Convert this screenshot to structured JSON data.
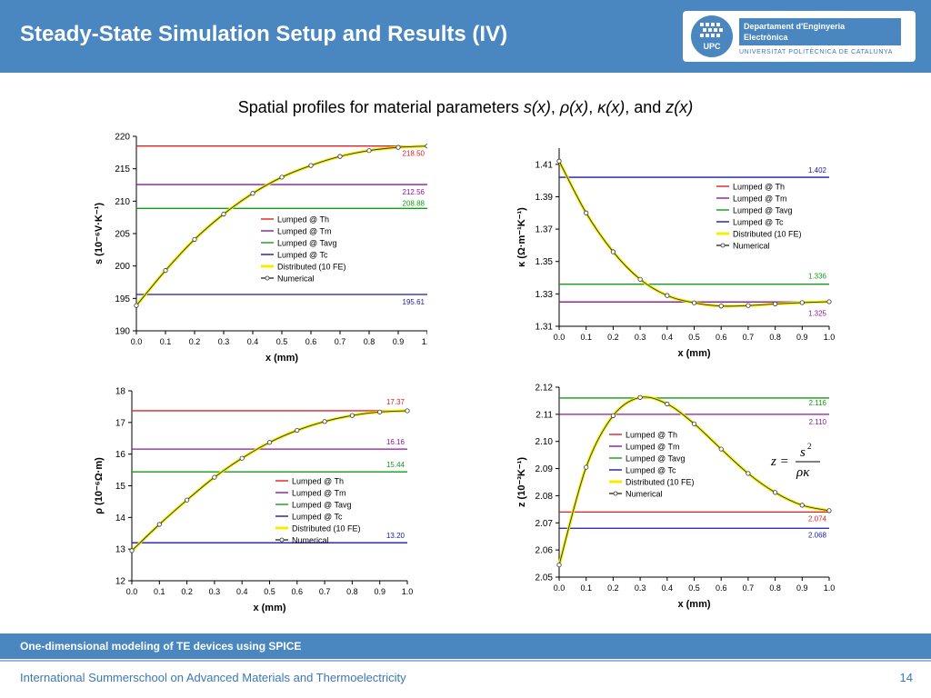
{
  "slide": {
    "title": "Steady-State Simulation Setup and Results (IV)",
    "subtitle_prefix": "Spatial profiles for material parameters ",
    "subtitle_params": [
      "s(x)",
      "ρ(x)",
      "κ(x)",
      "z(x)"
    ],
    "subtitle_and": "and",
    "footer_course": "One-dimensional modeling of TE devices using SPICE",
    "footer_event": "International Summerschool on Advanced Materials and Thermoelectricity",
    "page_number": "14"
  },
  "logo": {
    "seal_text": "UPC",
    "department_line1": "Departament d'Enginyeria",
    "department_line2": "Electrònica",
    "university": "UNIVERSITAT POLITÈCNICA DE CATALUNYA"
  },
  "colors": {
    "header_blue": "#4a86c0",
    "Th": "#e02020",
    "Tm": "#8a1a9a",
    "Tavg": "#159a15",
    "Tc": "#1a1aa8",
    "distributed": "#f2ef00",
    "numerical": "#333333"
  },
  "chart_data": [
    {
      "id": "s",
      "type": "line",
      "xlabel": "x (mm)",
      "ylabel": "s (10⁻⁶V·K⁻¹)",
      "xlim": [
        0,
        1
      ],
      "ylim": [
        190,
        220
      ],
      "xticks": [
        "0.0",
        "0.1",
        "0.2",
        "0.3",
        "0.4",
        "0.5",
        "0.6",
        "0.7",
        "0.8",
        "0.9",
        "1.0"
      ],
      "yticks": [
        "190",
        "195",
        "200",
        "205",
        "210",
        "215",
        "220"
      ],
      "legend_position": "center",
      "lumped": [
        {
          "name": "Lumped @ Th",
          "value": 218.5,
          "label": "218.50"
        },
        {
          "name": "Lumped @ Tm",
          "value": 212.56,
          "label": "212.56"
        },
        {
          "name": "Lumped @ Tavg",
          "value": 208.88,
          "label": "208.88"
        },
        {
          "name": "Lumped @ Tc",
          "value": 195.61,
          "label": "195.61"
        }
      ],
      "distributed_name": "Distributed (10 FE)",
      "numerical_name": "Numerical",
      "x": [
        0.0,
        0.1,
        0.2,
        0.3,
        0.4,
        0.5,
        0.6,
        0.7,
        0.8,
        0.9,
        1.0
      ],
      "values": [
        193.9,
        199.3,
        204.1,
        208.0,
        211.2,
        213.7,
        215.5,
        216.9,
        217.8,
        218.3,
        218.5
      ]
    },
    {
      "id": "kappa",
      "type": "line",
      "xlabel": "x (mm)",
      "ylabel": "κ (Ω·m⁻¹K⁻¹)",
      "xlim": [
        0,
        1
      ],
      "ylim": [
        1.31,
        1.42
      ],
      "xticks": [
        "0.0",
        "0.1",
        "0.2",
        "0.3",
        "0.4",
        "0.5",
        "0.6",
        "0.7",
        "0.8",
        "0.9",
        "1.0"
      ],
      "yticks": [
        "1.31",
        "1.33",
        "1.35",
        "1.37",
        "1.39",
        "1.41"
      ],
      "legend_position": "top-right",
      "lumped": [
        {
          "name": "Lumped @ Th",
          "value": 1.325,
          "label": ""
        },
        {
          "name": "Lumped @ Tm",
          "value": 1.325,
          "label": "1.325"
        },
        {
          "name": "Lumped @ Tavg",
          "value": 1.336,
          "label": "1.336"
        },
        {
          "name": "Lumped @ Tc",
          "value": 1.402,
          "label": "1.402"
        }
      ],
      "distributed_name": "Distributed (10 FE)",
      "numerical_name": "Numerical",
      "x": [
        0.0,
        0.1,
        0.2,
        0.3,
        0.4,
        0.5,
        0.6,
        0.7,
        0.8,
        0.9,
        1.0
      ],
      "values": [
        1.412,
        1.38,
        1.356,
        1.339,
        1.329,
        1.3245,
        1.3225,
        1.3228,
        1.3238,
        1.3246,
        1.3252
      ]
    },
    {
      "id": "rho",
      "type": "line",
      "xlabel": "x (mm)",
      "ylabel": "ρ (10⁻⁶Ω·m)",
      "xlim": [
        0,
        1
      ],
      "ylim": [
        12,
        18
      ],
      "xticks": [
        "0.0",
        "0.1",
        "0.2",
        "0.3",
        "0.4",
        "0.5",
        "0.6",
        "0.7",
        "0.8",
        "0.9",
        "1.0"
      ],
      "yticks": [
        "12",
        "13",
        "14",
        "15",
        "16",
        "17",
        "18"
      ],
      "legend_position": "bottom-right",
      "lumped": [
        {
          "name": "Lumped @ Th",
          "value": 17.37,
          "label": "17.37"
        },
        {
          "name": "Lumped @ Tm",
          "value": 16.16,
          "label": "16.16"
        },
        {
          "name": "Lumped @ Tavg",
          "value": 15.44,
          "label": "15.44"
        },
        {
          "name": "Lumped @ Tc",
          "value": 13.2,
          "label": "13.20"
        }
      ],
      "distributed_name": "Distributed (10 FE)",
      "numerical_name": "Numerical",
      "x": [
        0.0,
        0.1,
        0.2,
        0.3,
        0.4,
        0.5,
        0.6,
        0.7,
        0.8,
        0.9,
        1.0
      ],
      "values": [
        12.95,
        13.78,
        14.55,
        15.27,
        15.87,
        16.37,
        16.75,
        17.03,
        17.22,
        17.33,
        17.37
      ]
    },
    {
      "id": "z",
      "type": "line",
      "xlabel": "x (mm)",
      "ylabel": "z (10⁻³K⁻¹)",
      "xlim": [
        0,
        1
      ],
      "ylim": [
        2.05,
        2.12
      ],
      "xticks": [
        "0.0",
        "0.1",
        "0.2",
        "0.3",
        "0.4",
        "0.5",
        "0.6",
        "0.7",
        "0.8",
        "0.9",
        "1.0"
      ],
      "yticks": [
        "2.05",
        "2.06",
        "2.07",
        "2.08",
        "2.09",
        "2.10",
        "2.11",
        "2.12"
      ],
      "legend_position": "center",
      "lumped": [
        {
          "name": "Lumped @ Th",
          "value": 2.074,
          "label": "2.074"
        },
        {
          "name": "Lumped @ Tm",
          "value": 2.11,
          "label": "2.110"
        },
        {
          "name": "Lumped @ Tavg",
          "value": 2.116,
          "label": "2.116"
        },
        {
          "name": "Lumped @ Tc",
          "value": 2.068,
          "label": "2.068"
        }
      ],
      "distributed_name": "Distributed (10 FE)",
      "numerical_name": "Numerical",
      "formula": {
        "lhs": "z =",
        "numerator": "s",
        "exponent": "2",
        "denominator": "ρκ"
      },
      "x": [
        0.0,
        0.1,
        0.2,
        0.3,
        0.4,
        0.5,
        0.6,
        0.7,
        0.8,
        0.9,
        1.0
      ],
      "values": [
        2.0545,
        2.0905,
        2.1095,
        2.1162,
        2.1138,
        2.1065,
        2.0972,
        2.0882,
        2.0812,
        2.0765,
        2.0745
      ]
    }
  ]
}
